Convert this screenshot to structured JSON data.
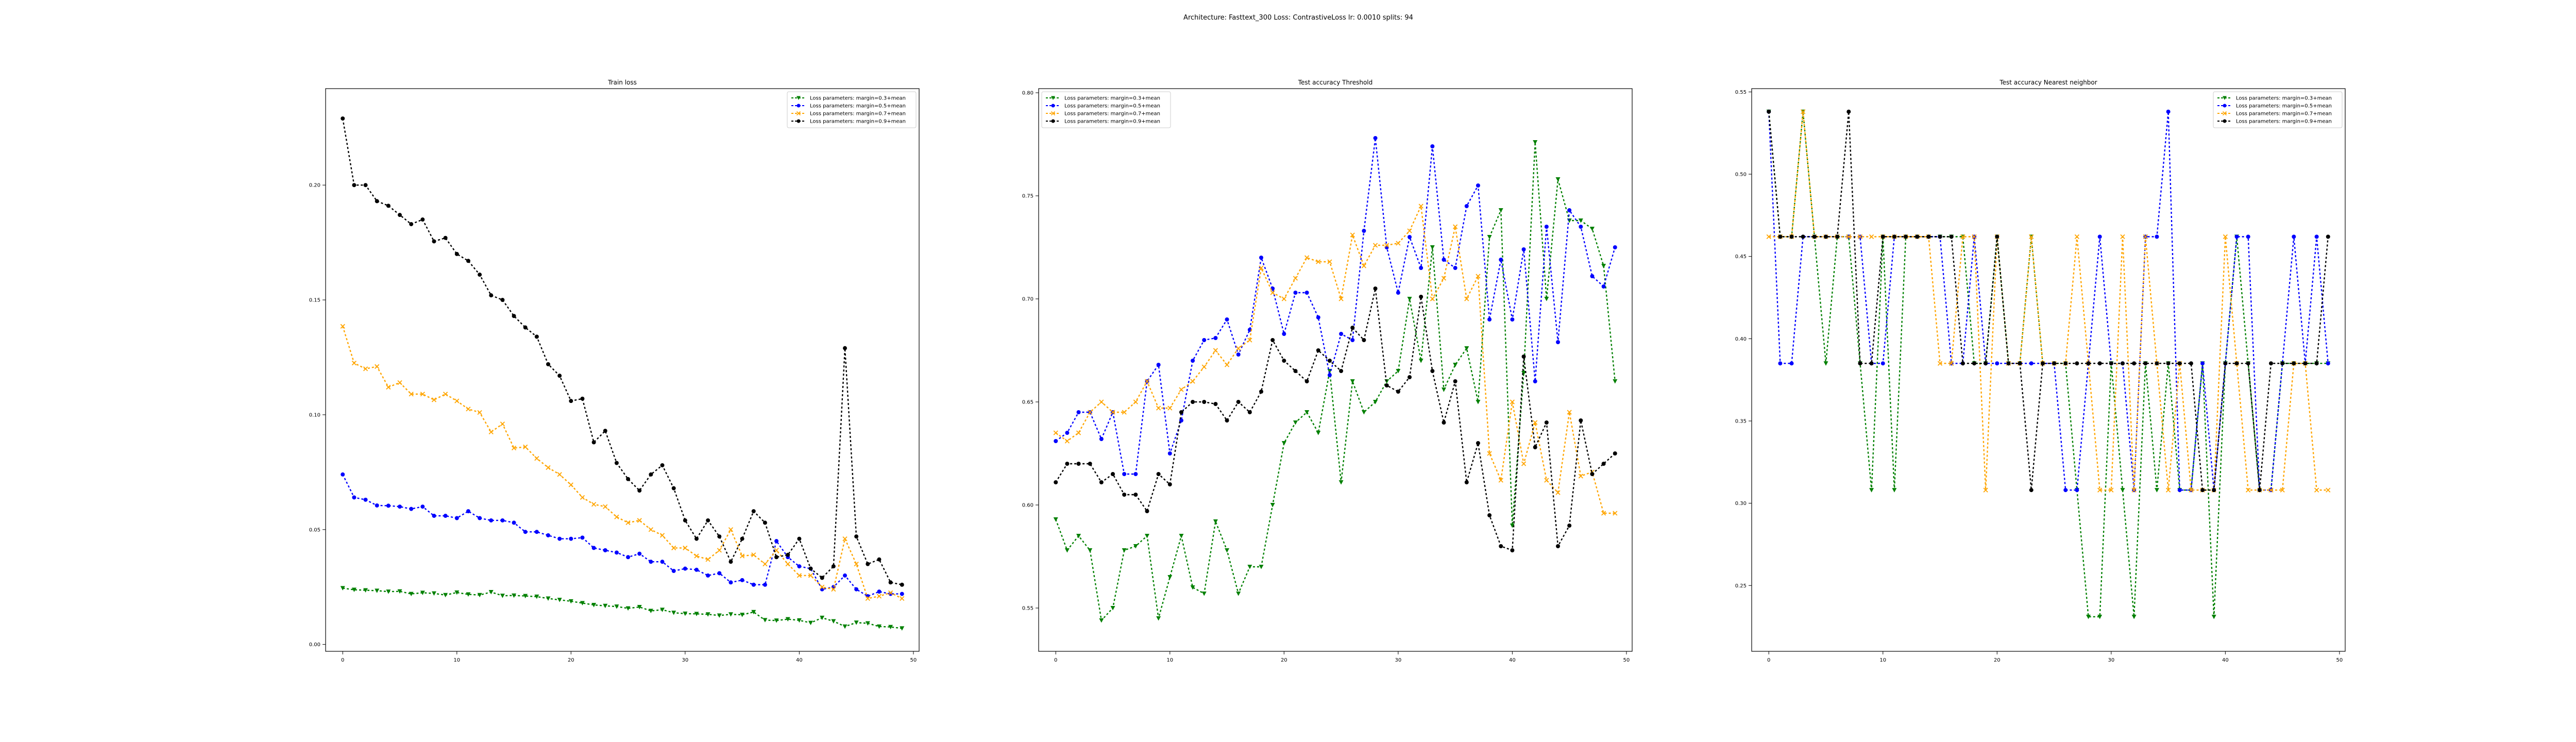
{
  "figure": {
    "suptitle": "Architecture: Fasttext_300 Loss: ContrastiveLoss lr: 0.0010 splits: 94"
  },
  "legend_labels": [
    "Loss parameters: margin=0.3+mean",
    "Loss parameters: margin=0.5+mean",
    "Loss parameters: margin=0.7+mean",
    "Loss parameters: margin=0.9+mean"
  ],
  "colors": {
    "margin_0.3": "#008000",
    "margin_0.5": "#0000ff",
    "margin_0.7": "#ffa500",
    "margin_0.9": "#000000"
  },
  "chart_data": [
    {
      "type": "line",
      "title": "Train loss",
      "xlabel": "",
      "ylabel": "",
      "xlim": [
        -1.5,
        50.5
      ],
      "ylim": [
        -0.003,
        0.242
      ],
      "xticks": [
        0,
        10,
        20,
        30,
        40,
        50
      ],
      "yticks": [
        0.0,
        0.05,
        0.1,
        0.15,
        0.2
      ],
      "ytick_labels": [
        "0.00",
        "0.05",
        "0.10",
        "0.15",
        "0.20"
      ],
      "legend_position": "upper right",
      "x": [
        0,
        1,
        2,
        3,
        4,
        5,
        6,
        7,
        8,
        9,
        10,
        11,
        12,
        13,
        14,
        15,
        16,
        17,
        18,
        19,
        20,
        21,
        22,
        23,
        24,
        25,
        26,
        27,
        28,
        29,
        30,
        31,
        32,
        33,
        34,
        35,
        36,
        37,
        38,
        39,
        40,
        41,
        42,
        43,
        44,
        45,
        46,
        47,
        48,
        49
      ],
      "series": [
        {
          "name": "Loss parameters: margin=0.3+mean",
          "color": "#008000",
          "values": [
            0.0245,
            0.0238,
            0.0236,
            0.0234,
            0.023,
            0.0231,
            0.022,
            0.0225,
            0.0222,
            0.0215,
            0.0226,
            0.0218,
            0.0215,
            0.0228,
            0.0212,
            0.0213,
            0.0211,
            0.0208,
            0.02,
            0.0194,
            0.0188,
            0.018,
            0.0172,
            0.0168,
            0.0165,
            0.0157,
            0.0163,
            0.0146,
            0.0151,
            0.0138,
            0.0134,
            0.0133,
            0.0131,
            0.0126,
            0.0131,
            0.0129,
            0.0141,
            0.0106,
            0.0104,
            0.011,
            0.0105,
            0.0094,
            0.0116,
            0.0101,
            0.0078,
            0.0095,
            0.0092,
            0.0078,
            0.0076,
            0.007
          ]
        },
        {
          "name": "Loss parameters: margin=0.5+mean",
          "color": "#0000ff",
          "values": [
            0.074,
            0.064,
            0.063,
            0.0605,
            0.0604,
            0.06,
            0.059,
            0.06,
            0.056,
            0.056,
            0.055,
            0.058,
            0.055,
            0.054,
            0.054,
            0.053,
            0.049,
            0.049,
            0.0475,
            0.046,
            0.046,
            0.0465,
            0.042,
            0.041,
            0.04,
            0.038,
            0.0395,
            0.036,
            0.036,
            0.032,
            0.033,
            0.0325,
            0.03,
            0.031,
            0.027,
            0.028,
            0.026,
            0.026,
            0.045,
            0.038,
            0.034,
            0.033,
            0.024,
            0.025,
            0.03,
            0.024,
            0.021,
            0.023,
            0.022,
            0.022
          ]
        },
        {
          "name": "Loss parameters: margin=0.7+mean",
          "color": "#ffa500",
          "values": [
            0.1385,
            0.1225,
            0.12,
            0.121,
            0.112,
            0.114,
            0.109,
            0.109,
            0.1065,
            0.109,
            0.106,
            0.1025,
            0.101,
            0.0925,
            0.096,
            0.0855,
            0.086,
            0.081,
            0.077,
            0.074,
            0.0695,
            0.064,
            0.061,
            0.06,
            0.0555,
            0.053,
            0.054,
            0.05,
            0.0475,
            0.042,
            0.042,
            0.0385,
            0.037,
            0.041,
            0.05,
            0.0385,
            0.039,
            0.035,
            0.041,
            0.035,
            0.03,
            0.03,
            0.025,
            0.024,
            0.046,
            0.035,
            0.02,
            0.021,
            0.0225,
            0.02
          ]
        },
        {
          "name": "Loss parameters: margin=0.9+mean",
          "color": "#000000",
          "values": [
            0.229,
            0.2,
            0.2,
            0.193,
            0.191,
            0.187,
            0.183,
            0.185,
            0.1755,
            0.177,
            0.17,
            0.167,
            0.161,
            0.152,
            0.15,
            0.143,
            0.138,
            0.134,
            0.122,
            0.117,
            0.106,
            0.107,
            0.088,
            0.093,
            0.079,
            0.072,
            0.067,
            0.074,
            0.078,
            0.068,
            0.054,
            0.046,
            0.054,
            0.047,
            0.036,
            0.046,
            0.058,
            0.053,
            0.038,
            0.039,
            0.046,
            0.033,
            0.029,
            0.034,
            0.129,
            0.047,
            0.035,
            0.037,
            0.027,
            0.026
          ]
        }
      ]
    },
    {
      "type": "line",
      "title": "Test accuracy Threshold",
      "xlabel": "",
      "ylabel": "",
      "xlim": [
        -1.5,
        50.5
      ],
      "ylim": [
        0.529,
        0.802
      ],
      "xticks": [
        0,
        10,
        20,
        30,
        40,
        50
      ],
      "yticks": [
        0.55,
        0.6,
        0.65,
        0.7,
        0.75,
        0.8
      ],
      "ytick_labels": [
        "0.55",
        "0.60",
        "0.65",
        "0.70",
        "0.75",
        "0.80"
      ],
      "legend_position": "upper left",
      "x": [
        0,
        1,
        2,
        3,
        4,
        5,
        6,
        7,
        8,
        9,
        10,
        11,
        12,
        13,
        14,
        15,
        16,
        17,
        18,
        19,
        20,
        21,
        22,
        23,
        24,
        25,
        26,
        27,
        28,
        29,
        30,
        31,
        32,
        33,
        34,
        35,
        36,
        37,
        38,
        39,
        40,
        41,
        42,
        43,
        44,
        45,
        46,
        47,
        48,
        49
      ],
      "series": [
        {
          "name": "Loss parameters: margin=0.3+mean",
          "color": "#008000",
          "values": [
            0.593,
            0.578,
            0.585,
            0.578,
            0.544,
            0.55,
            0.578,
            0.58,
            0.585,
            0.545,
            0.565,
            0.585,
            0.56,
            0.557,
            0.592,
            0.578,
            0.557,
            0.57,
            0.57,
            0.6,
            0.63,
            0.64,
            0.645,
            0.635,
            0.665,
            0.611,
            0.66,
            0.645,
            0.65,
            0.66,
            0.665,
            0.7,
            0.67,
            0.725,
            0.656,
            0.668,
            0.676,
            0.65,
            0.73,
            0.743,
            0.59,
            0.664,
            0.776,
            0.7,
            0.758,
            0.738,
            0.738,
            0.734,
            0.716,
            0.66
          ]
        },
        {
          "name": "Loss parameters: margin=0.5+mean",
          "color": "#0000ff",
          "values": [
            0.631,
            0.635,
            0.645,
            0.645,
            0.632,
            0.645,
            0.615,
            0.615,
            0.66,
            0.668,
            0.625,
            0.641,
            0.67,
            0.68,
            0.681,
            0.69,
            0.673,
            0.685,
            0.72,
            0.705,
            0.683,
            0.703,
            0.703,
            0.691,
            0.663,
            0.683,
            0.68,
            0.733,
            0.778,
            0.725,
            0.703,
            0.73,
            0.715,
            0.774,
            0.719,
            0.715,
            0.745,
            0.755,
            0.69,
            0.719,
            0.69,
            0.724,
            0.66,
            0.735,
            0.679,
            0.743,
            0.735,
            0.711,
            0.706,
            0.725
          ]
        },
        {
          "name": "Loss parameters: margin=0.7+mean",
          "color": "#ffa500",
          "values": [
            0.635,
            0.631,
            0.635,
            0.645,
            0.65,
            0.645,
            0.645,
            0.65,
            0.66,
            0.647,
            0.647,
            0.656,
            0.66,
            0.667,
            0.675,
            0.668,
            0.676,
            0.68,
            0.715,
            0.703,
            0.7,
            0.71,
            0.72,
            0.718,
            0.718,
            0.7,
            0.731,
            0.716,
            0.726,
            0.726,
            0.727,
            0.733,
            0.745,
            0.7,
            0.71,
            0.735,
            0.7,
            0.711,
            0.625,
            0.612,
            0.65,
            0.62,
            0.64,
            0.612,
            0.606,
            0.645,
            0.614,
            0.616,
            0.596,
            0.596
          ]
        },
        {
          "name": "Loss parameters: margin=0.9+mean",
          "color": "#000000",
          "values": [
            0.611,
            0.62,
            0.62,
            0.62,
            0.611,
            0.615,
            0.605,
            0.605,
            0.597,
            0.615,
            0.61,
            0.645,
            0.65,
            0.65,
            0.649,
            0.641,
            0.65,
            0.645,
            0.655,
            0.68,
            0.67,
            0.665,
            0.66,
            0.675,
            0.67,
            0.665,
            0.686,
            0.68,
            0.705,
            0.658,
            0.655,
            0.662,
            0.701,
            0.665,
            0.64,
            0.66,
            0.611,
            0.63,
            0.595,
            0.58,
            0.578,
            0.672,
            0.628,
            0.64,
            0.58,
            0.59,
            0.641,
            0.615,
            0.62,
            0.625
          ]
        }
      ]
    },
    {
      "type": "line",
      "title": "Test accuracy Nearest neighbor",
      "xlabel": "",
      "ylabel": "",
      "xlim": [
        -1.5,
        50.5
      ],
      "ylim": [
        0.21,
        0.552
      ],
      "xticks": [
        0,
        10,
        20,
        30,
        40,
        50
      ],
      "yticks": [
        0.25,
        0.3,
        0.35,
        0.4,
        0.45,
        0.5,
        0.55
      ],
      "ytick_labels": [
        "0.25",
        "0.30",
        "0.35",
        "0.40",
        "0.45",
        "0.50",
        "0.55"
      ],
      "legend_position": "upper right",
      "x": [
        0,
        1,
        2,
        3,
        4,
        5,
        6,
        7,
        8,
        9,
        10,
        11,
        12,
        13,
        14,
        15,
        16,
        17,
        18,
        19,
        20,
        21,
        22,
        23,
        24,
        25,
        26,
        27,
        28,
        29,
        30,
        31,
        32,
        33,
        34,
        35,
        36,
        37,
        38,
        39,
        40,
        41,
        42,
        43,
        44,
        45,
        46,
        47,
        48,
        49
      ],
      "series": [
        {
          "name": "Loss parameters: margin=0.3+mean",
          "color": "#008000",
          "values": [
            0.538,
            0.462,
            0.462,
            0.538,
            0.462,
            0.385,
            0.462,
            0.462,
            0.385,
            0.308,
            0.462,
            0.308,
            0.462,
            0.462,
            0.462,
            0.462,
            0.462,
            0.462,
            0.385,
            0.385,
            0.462,
            0.385,
            0.385,
            0.462,
            0.385,
            0.385,
            0.385,
            0.308,
            0.231,
            0.231,
            0.385,
            0.308,
            0.231,
            0.385,
            0.308,
            0.385,
            0.308,
            0.308,
            0.385,
            0.231,
            0.385,
            0.462,
            0.385,
            0.308,
            0.308,
            0.385,
            0.385,
            0.385,
            0.385,
            0.385
          ]
        },
        {
          "name": "Loss parameters: margin=0.5+mean",
          "color": "#0000ff",
          "values": [
            0.538,
            0.385,
            0.385,
            0.462,
            0.462,
            0.462,
            0.462,
            0.462,
            0.462,
            0.385,
            0.385,
            0.462,
            0.462,
            0.462,
            0.462,
            0.462,
            0.385,
            0.385,
            0.462,
            0.385,
            0.385,
            0.385,
            0.385,
            0.385,
            0.385,
            0.385,
            0.308,
            0.308,
            0.385,
            0.462,
            0.385,
            0.385,
            0.308,
            0.462,
            0.462,
            0.538,
            0.308,
            0.308,
            0.385,
            0.308,
            0.385,
            0.462,
            0.462,
            0.308,
            0.308,
            0.385,
            0.462,
            0.385,
            0.462,
            0.385
          ]
        },
        {
          "name": "Loss parameters: margin=0.7+mean",
          "color": "#ffa500",
          "values": [
            0.462,
            0.462,
            0.462,
            0.538,
            0.462,
            0.462,
            0.462,
            0.462,
            0.462,
            0.462,
            0.462,
            0.462,
            0.462,
            0.462,
            0.462,
            0.385,
            0.385,
            0.462,
            0.462,
            0.308,
            0.462,
            0.385,
            0.385,
            0.462,
            0.385,
            0.385,
            0.385,
            0.462,
            0.385,
            0.308,
            0.308,
            0.462,
            0.308,
            0.462,
            0.385,
            0.308,
            0.385,
            0.308,
            0.308,
            0.308,
            0.462,
            0.385,
            0.308,
            0.308,
            0.308,
            0.308,
            0.385,
            0.385,
            0.308,
            0.308
          ]
        },
        {
          "name": "Loss parameters: margin=0.9+mean",
          "color": "#000000",
          "values": [
            0.538,
            0.462,
            0.462,
            0.462,
            0.462,
            0.462,
            0.462,
            0.538,
            0.385,
            0.385,
            0.462,
            0.462,
            0.462,
            0.462,
            0.462,
            0.462,
            0.462,
            0.385,
            0.385,
            0.385,
            0.462,
            0.385,
            0.385,
            0.308,
            0.385,
            0.385,
            0.385,
            0.385,
            0.385,
            0.385,
            0.385,
            0.385,
            0.385,
            0.385,
            0.385,
            0.385,
            0.385,
            0.385,
            0.308,
            0.308,
            0.385,
            0.385,
            0.385,
            0.308,
            0.385,
            0.385,
            0.385,
            0.385,
            0.385,
            0.462
          ]
        }
      ]
    }
  ]
}
